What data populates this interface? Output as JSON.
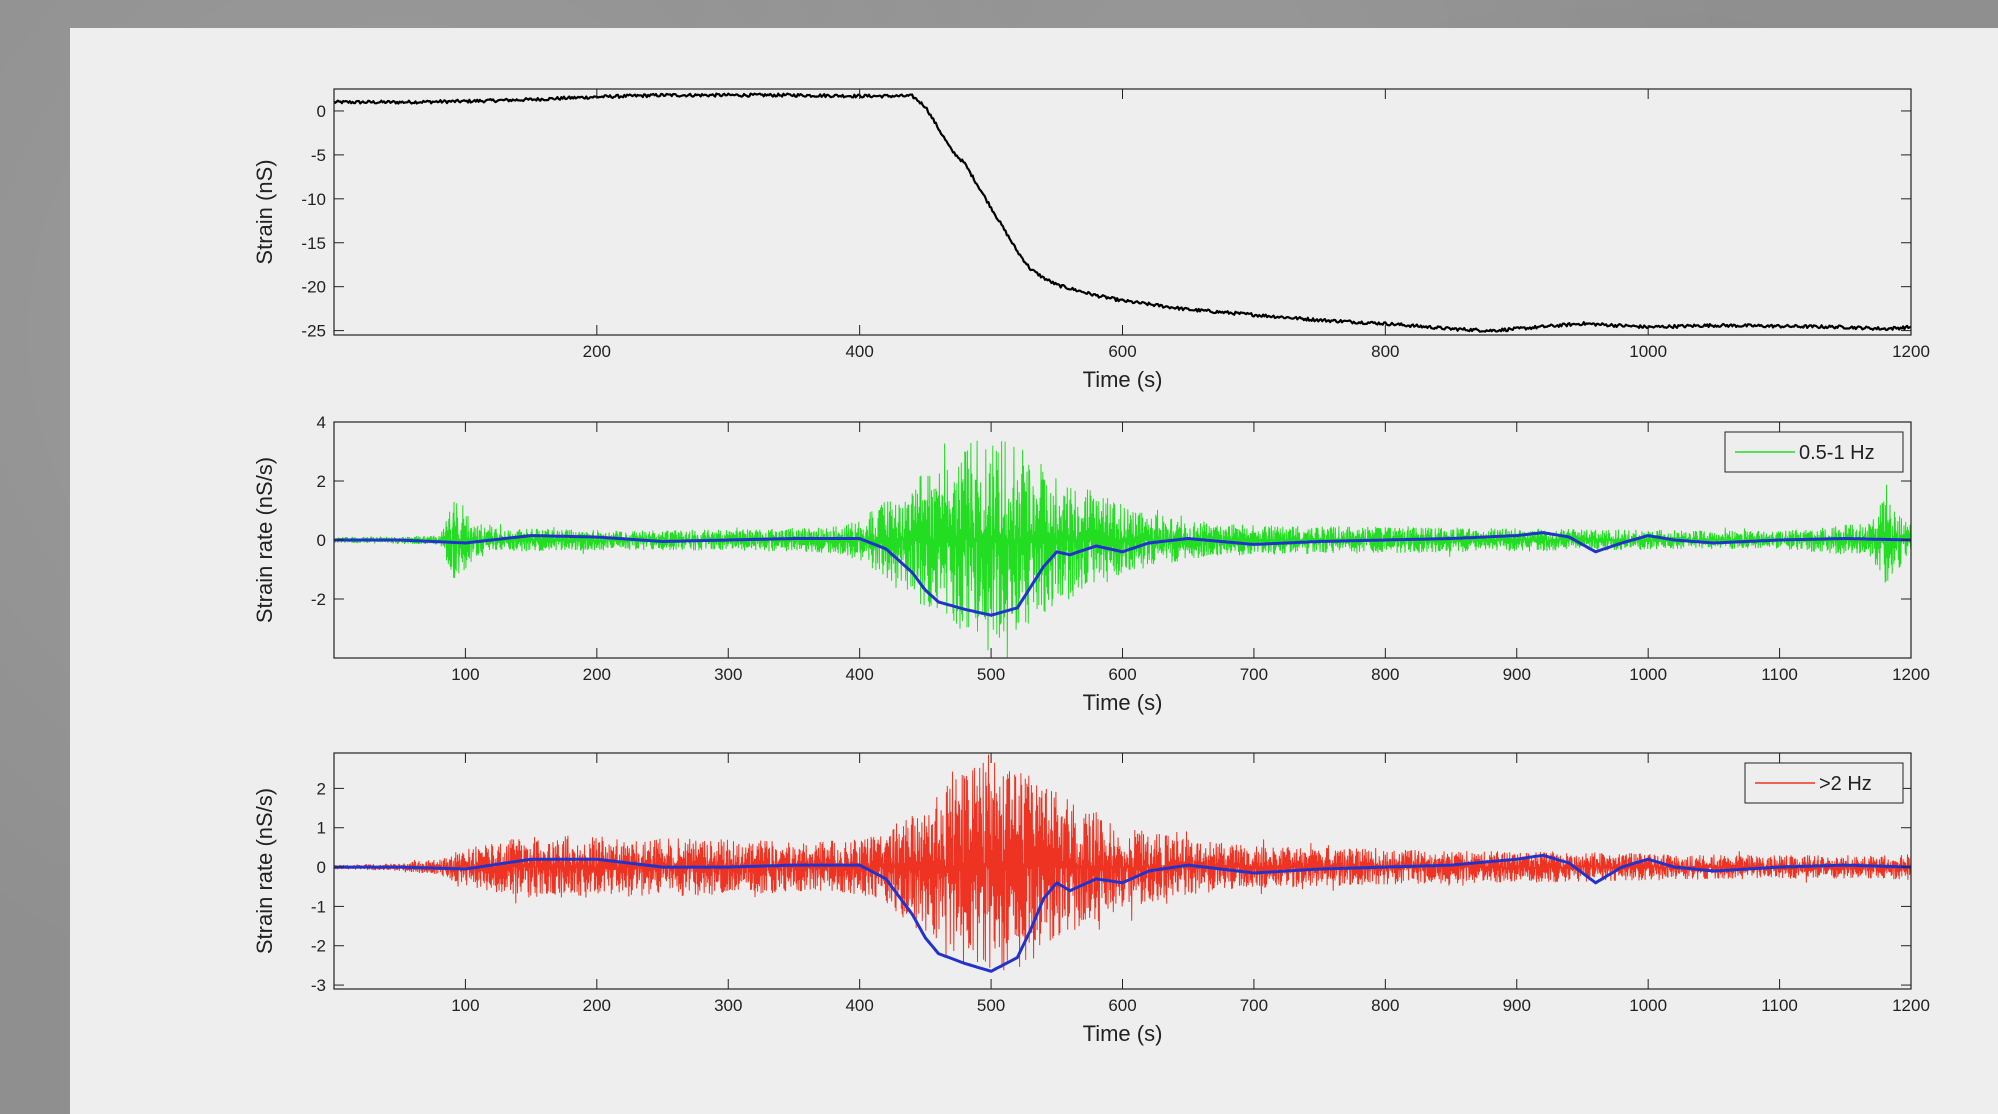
{
  "colors": {
    "strain": "#000000",
    "band_low": "#22dd22",
    "band_high": "#ee3322",
    "envelope": "#2233cc",
    "axes_bg": "#eeeeee",
    "page_bg": "#8f8f8f"
  },
  "chart_data": [
    {
      "type": "line",
      "title": "",
      "xlabel": "Time (s)",
      "ylabel": "Strain (nS)",
      "xlim": [
        0,
        1200
      ],
      "ylim": [
        -25.5,
        2.5
      ],
      "xticks": [
        200,
        400,
        600,
        800,
        1000,
        1200
      ],
      "yticks": [
        0,
        -5,
        -10,
        -15,
        -20,
        -25
      ],
      "grid": false,
      "legend": null,
      "series": [
        {
          "color": "#000000",
          "x": [
            0,
            50,
            100,
            150,
            200,
            250,
            300,
            350,
            400,
            420,
            440,
            450,
            460,
            470,
            480,
            490,
            500,
            510,
            520,
            530,
            540,
            550,
            560,
            580,
            600,
            620,
            650,
            700,
            750,
            800,
            850,
            880,
            900,
            950,
            1000,
            1050,
            1100,
            1150,
            1180,
            1200
          ],
          "y": [
            1,
            1,
            1.1,
            1.3,
            1.6,
            1.8,
            1.8,
            1.8,
            1.7,
            1.7,
            1.7,
            0.5,
            -2,
            -4.5,
            -6,
            -8.5,
            -11,
            -13.5,
            -16,
            -18,
            -19,
            -19.8,
            -20.2,
            -21,
            -21.6,
            -22,
            -22.6,
            -23.2,
            -23.8,
            -24.2,
            -24.8,
            -25,
            -24.8,
            -24.2,
            -24.6,
            -24.4,
            -24.5,
            -24.6,
            -24.8,
            -24.6
          ]
        }
      ]
    },
    {
      "type": "line",
      "title": "",
      "xlabel": "Time (s)",
      "ylabel": "Strain rate (nS/s)",
      "xlim": [
        0,
        1200
      ],
      "ylim": [
        -4,
        4
      ],
      "xticks": [
        100,
        200,
        300,
        400,
        500,
        600,
        700,
        800,
        900,
        1000,
        1100,
        1200
      ],
      "yticks": [
        4,
        2,
        0,
        -2
      ],
      "grid": false,
      "legend": "top-right",
      "series": [
        {
          "name": "0.5-1 Hz",
          "color": "#22dd22",
          "x": [
            0,
            80,
            90,
            95,
            100,
            110,
            130,
            200,
            300,
            380,
            400,
            420,
            440,
            460,
            480,
            500,
            520,
            540,
            560,
            580,
            600,
            620,
            660,
            700,
            800,
            900,
            1000,
            1100,
            1170,
            1180,
            1190,
            1200
          ],
          "amplitude": [
            0.1,
            0.15,
            1.2,
            1.8,
            1.0,
            0.6,
            0.4,
            0.35,
            0.35,
            0.45,
            0.7,
            1.4,
            2.0,
            2.6,
            3.2,
            3.6,
            3.2,
            2.6,
            2.0,
            1.6,
            1.2,
            0.9,
            0.6,
            0.5,
            0.45,
            0.4,
            0.35,
            0.3,
            0.6,
            1.5,
            1.0,
            0.5
          ]
        },
        {
          "color": "#2233cc",
          "x": [
            0,
            50,
            100,
            150,
            200,
            250,
            300,
            350,
            400,
            420,
            440,
            450,
            460,
            480,
            500,
            520,
            530,
            540,
            550,
            560,
            580,
            600,
            620,
            650,
            700,
            750,
            800,
            850,
            900,
            920,
            940,
            960,
            980,
            1000,
            1020,
            1050,
            1100,
            1150,
            1200
          ],
          "y": [
            0,
            0,
            -0.1,
            0.15,
            0.1,
            -0.05,
            0,
            0.05,
            0.05,
            -0.3,
            -1.1,
            -1.7,
            -2.1,
            -2.35,
            -2.55,
            -2.3,
            -1.6,
            -0.9,
            -0.4,
            -0.5,
            -0.2,
            -0.4,
            -0.1,
            0.05,
            -0.15,
            -0.05,
            0,
            0.05,
            0.15,
            0.25,
            0.1,
            -0.4,
            -0.1,
            0.15,
            0,
            -0.1,
            0,
            0.05,
            0
          ]
        }
      ]
    },
    {
      "type": "line",
      "title": "",
      "xlabel": "Time (s)",
      "ylabel": "Strain rate (nS/s)",
      "xlim": [
        0,
        1200
      ],
      "ylim": [
        -3.1,
        2.9
      ],
      "xticks": [
        100,
        200,
        300,
        400,
        500,
        600,
        700,
        800,
        900,
        1000,
        1100,
        1200
      ],
      "yticks": [
        2,
        1,
        0,
        -1,
        -2,
        -3
      ],
      "grid": false,
      "legend": "top-right",
      "series": [
        {
          "name": ">2 Hz",
          "color": "#ee3322",
          "x": [
            0,
            50,
            80,
            100,
            150,
            200,
            250,
            300,
            350,
            400,
            420,
            440,
            460,
            480,
            500,
            520,
            540,
            560,
            580,
            600,
            620,
            650,
            700,
            800,
            900,
            1000,
            1100,
            1180,
            1200
          ],
          "amplitude": [
            0.05,
            0.1,
            0.2,
            0.5,
            0.8,
            0.8,
            0.75,
            0.7,
            0.65,
            0.7,
            0.9,
            1.5,
            2.1,
            2.5,
            2.8,
            2.6,
            2.2,
            1.7,
            1.4,
            1.1,
            0.9,
            0.7,
            0.55,
            0.45,
            0.4,
            0.35,
            0.3,
            0.3,
            0.35
          ]
        },
        {
          "color": "#2233cc",
          "x": [
            0,
            50,
            100,
            150,
            200,
            250,
            300,
            350,
            400,
            420,
            440,
            450,
            460,
            480,
            500,
            520,
            530,
            540,
            550,
            560,
            580,
            600,
            620,
            650,
            700,
            750,
            800,
            850,
            900,
            920,
            940,
            960,
            980,
            1000,
            1020,
            1050,
            1100,
            1150,
            1200
          ],
          "y": [
            0,
            0,
            -0.05,
            0.2,
            0.2,
            0,
            0,
            0.05,
            0.05,
            -0.3,
            -1.2,
            -1.8,
            -2.2,
            -2.45,
            -2.65,
            -2.3,
            -1.6,
            -0.8,
            -0.4,
            -0.6,
            -0.3,
            -0.4,
            -0.1,
            0.05,
            -0.15,
            -0.05,
            0,
            0.05,
            0.2,
            0.3,
            0.1,
            -0.4,
            0,
            0.2,
            0,
            -0.1,
            0,
            0.05,
            0
          ]
        }
      ]
    }
  ]
}
